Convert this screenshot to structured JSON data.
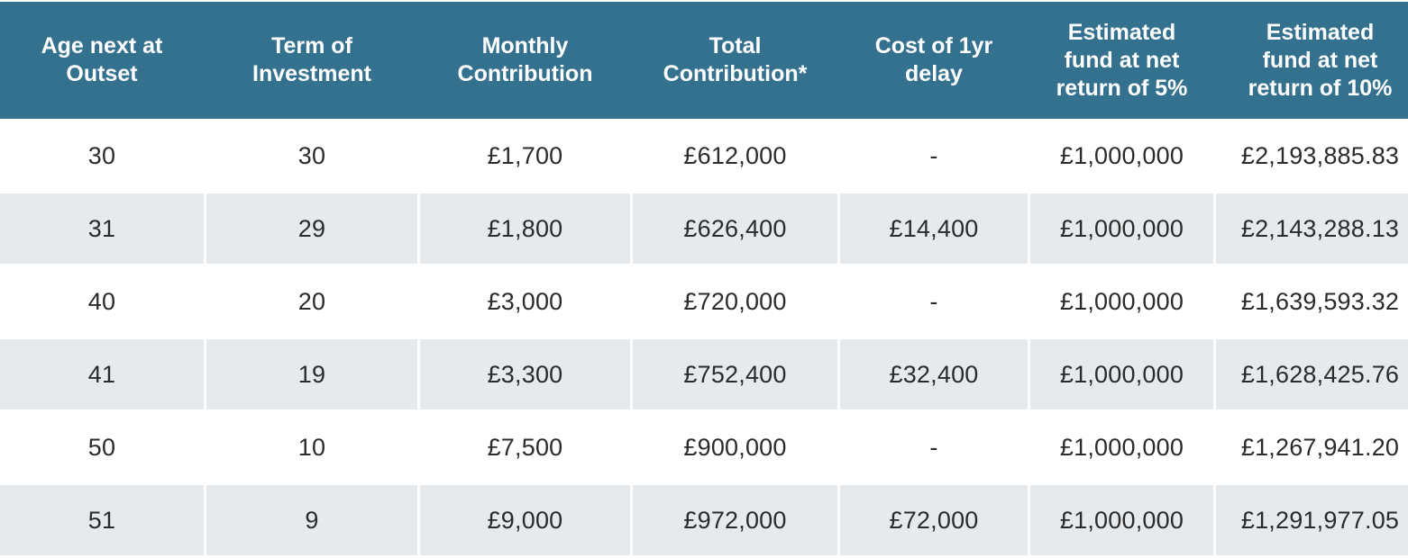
{
  "table": {
    "headers": [
      "Age next at\nOutset",
      "Term of\nInvestment",
      "Monthly\nContribution",
      "Total\nContribution*",
      "Cost of 1yr\ndelay",
      "Estimated\nfund at net\nreturn of 5%",
      "Estimated\nfund at net\nreturn of  10%"
    ],
    "rows": [
      [
        "30",
        "30",
        "£1,700",
        "£612,000",
        "-",
        "£1,000,000",
        "£2,193,885.83"
      ],
      [
        "31",
        "29",
        "£1,800",
        "£626,400",
        "£14,400",
        "£1,000,000",
        "£2,143,288.13"
      ],
      [
        "40",
        "20",
        "£3,000",
        "£720,000",
        "-",
        "£1,000,000",
        "£1,639,593.32"
      ],
      [
        "41",
        "19",
        "£3,300",
        "£752,400",
        "£32,400",
        "£1,000,000",
        "£1,628,425.76"
      ],
      [
        "50",
        "10",
        "£7,500",
        "£900,000",
        "-",
        "£1,000,000",
        "£1,267,941.20"
      ],
      [
        "51",
        "9",
        "£9,000",
        "£972,000",
        "£72,000",
        "£1,000,000",
        "£1,291,977.05"
      ]
    ]
  },
  "colors": {
    "header_bg": "#33718f",
    "header_text": "#ffffff",
    "stripe_bg": "#e6eaed",
    "cell_text": "#2b2b2b"
  }
}
